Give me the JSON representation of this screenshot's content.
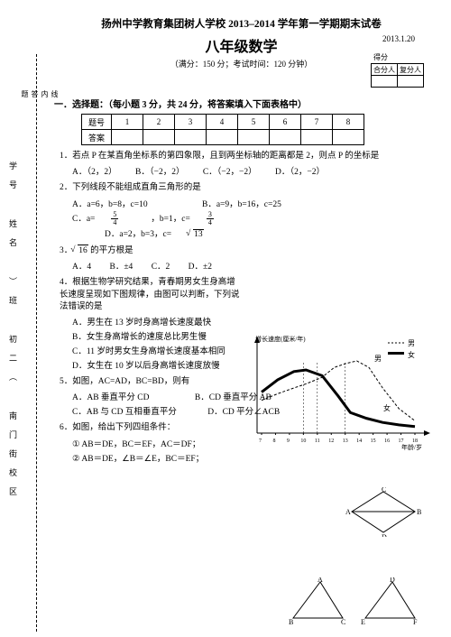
{
  "header": {
    "line1": "扬州中学教育集团树人学校 2013–2014 学年第一学期期末试卷",
    "line2": "八年级数学",
    "date": "2013.1.20",
    "line3": "（满分：150 分；考试时间：120 分钟）",
    "score_label": "得分",
    "score_headers": [
      "合分人",
      "复分人"
    ]
  },
  "side": {
    "dots_labels": [
      "学号",
      "姓名",
      "）班",
      "初二（",
      "南门街校区"
    ],
    "fold_labels": [
      "线",
      "内",
      "答",
      "题"
    ]
  },
  "section1": {
    "head": "一．选择题：（每小题 3 分，共 24 分，将答案填入下面表格中）",
    "row_label1": "题号",
    "row_label2": "答案",
    "cols": [
      "1",
      "2",
      "3",
      "4",
      "5",
      "6",
      "7",
      "8"
    ]
  },
  "q1": {
    "text": "1．若点 P 在某直角坐标系的第四象限，且到两坐标轴的距离都是 2，则点 P 的坐标是",
    "A": "A．（2，2）",
    "B": "B．（−2，2）",
    "C": "C．（−2，−2）",
    "D": "D．（2，−2）"
  },
  "q2": {
    "text": "2．下列线段不能组成直角三角形的是",
    "A": "A．a=6，b=8，c=10",
    "B": "B．a=9，b=16，c=25",
    "C_pre": "C．a=",
    "C_post": "，b=1，c=",
    "D": "D．a=2，b=3，c="
  },
  "q3": {
    "text_pre": "3．",
    "text_mid": " 的平方根是",
    "A": "A．4",
    "B": "B．±4",
    "C": "C．2",
    "D": "D．±2"
  },
  "q4": {
    "text": "4．根据生物学研究结果，青春期男女生身高增长速度呈现如下图规律，由图可以判断，下列说法错误的是",
    "A": "A．男生在 13 岁时身高增长速度最快",
    "B": "B．女生身高增长的速度总比男生慢",
    "C": "C．11 岁时男女生身高增长速度基本相同",
    "D": "D．女生在 10 岁以后身高增长速度放慢"
  },
  "q5": {
    "text": "5．如图，AC=AD，BC=BD，则有",
    "A": "A．AB 垂直平分 CD",
    "B": "B．CD 垂直平分 AB",
    "C": "C．AB 与 CD 互相垂直平分",
    "D": "D．CD 平分∠ACB"
  },
  "q6": {
    "text": "6．如图，给出下列四组条件：",
    "l1": "① AB＝DE，BC＝EF，AC＝DF；",
    "l2": "② AB＝DE，∠B＝∠E，BC＝EF；"
  },
  "chart": {
    "ylabel": "增长速度(厘米/年)",
    "xlabel": "年龄/岁",
    "legend_m": "男",
    "legend_f": "女",
    "xticks": [
      "7",
      "8",
      "9",
      "10",
      "11",
      "12",
      "13",
      "14",
      "15",
      "16",
      "17",
      "18"
    ],
    "female_pts": [
      [
        0,
        60
      ],
      [
        20,
        45
      ],
      [
        40,
        35
      ],
      [
        55,
        33
      ],
      [
        75,
        40
      ],
      [
        95,
        65
      ],
      [
        110,
        85
      ],
      [
        130,
        92
      ],
      [
        150,
        97
      ],
      [
        170,
        100
      ],
      [
        190,
        102
      ]
    ],
    "male_pts": [
      [
        0,
        70
      ],
      [
        20,
        62
      ],
      [
        40,
        55
      ],
      [
        55,
        50
      ],
      [
        75,
        42
      ],
      [
        90,
        30
      ],
      [
        105,
        25
      ],
      [
        118,
        22
      ],
      [
        133,
        30
      ],
      [
        150,
        55
      ],
      [
        170,
        80
      ],
      [
        190,
        95
      ]
    ],
    "colors": {
      "axis": "#000000",
      "male": "#000000",
      "female": "#000000",
      "bg": "#ffffff"
    }
  }
}
